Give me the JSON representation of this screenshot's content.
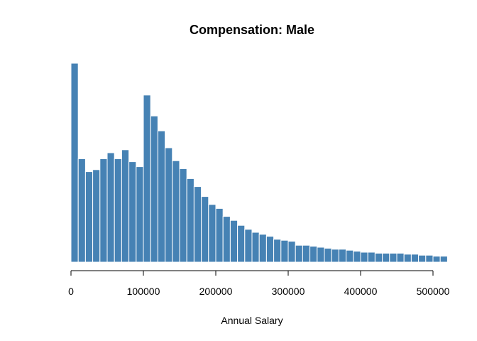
{
  "chart_data": {
    "type": "bar",
    "title": "Compensation: Male",
    "xlabel": "Annual Salary",
    "ylabel": "",
    "bar_color": "#4682B4",
    "bar_border_color": "#FFFFFF",
    "y_axis_shown": false,
    "grid": false,
    "xlim": [
      0,
      520000
    ],
    "ylim": [
      0,
      100
    ],
    "x_ticks": [
      0,
      100000,
      200000,
      300000,
      400000,
      500000
    ],
    "x_tick_labels": [
      "0",
      "100000",
      "200000",
      "300000",
      "400000",
      "500000"
    ],
    "bin_width": 10000,
    "bin_starts": [
      0,
      10000,
      20000,
      30000,
      40000,
      50000,
      60000,
      70000,
      80000,
      90000,
      100000,
      110000,
      120000,
      130000,
      140000,
      150000,
      160000,
      170000,
      180000,
      190000,
      200000,
      210000,
      220000,
      230000,
      240000,
      250000,
      260000,
      270000,
      280000,
      290000,
      300000,
      310000,
      320000,
      330000,
      340000,
      350000,
      360000,
      370000,
      380000,
      390000,
      400000,
      410000,
      420000,
      430000,
      440000,
      450000,
      460000,
      470000,
      480000,
      490000,
      500000,
      510000
    ],
    "values": [
      100,
      52,
      45.5,
      46.5,
      52,
      55,
      52,
      56.5,
      50.5,
      48,
      84,
      73.5,
      66,
      57.5,
      51,
      47,
      42,
      38,
      33,
      29,
      27,
      23,
      21,
      18.5,
      16.5,
      15,
      14,
      13,
      11.5,
      11,
      10.5,
      8.5,
      8.5,
      8,
      7.5,
      7,
      6.5,
      6.5,
      6,
      5.5,
      5,
      5,
      4.5,
      4.5,
      4.5,
      4.5,
      4,
      4,
      3.5,
      3.5,
      3,
      3
    ]
  }
}
